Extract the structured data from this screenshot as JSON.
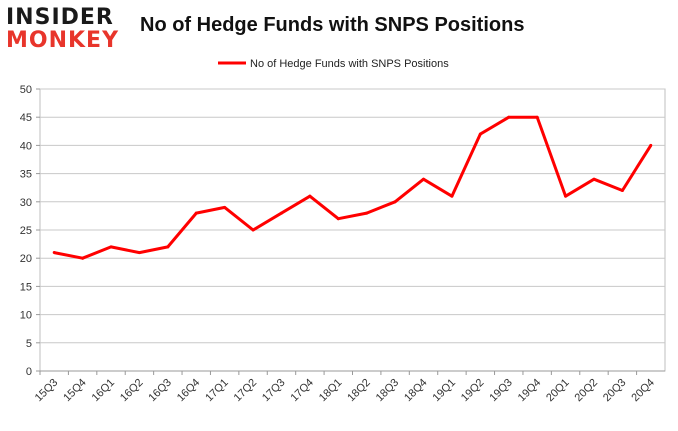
{
  "brand": {
    "logo_top": "INSIDER",
    "logo_bottom": "MONKEY"
  },
  "chart_data": {
    "type": "line",
    "title": "No of Hedge Funds with SNPS Positions",
    "xlabel": "",
    "ylabel": "",
    "categories": [
      "15Q3",
      "15Q4",
      "16Q1",
      "16Q2",
      "16Q3",
      "16Q4",
      "17Q1",
      "17Q2",
      "17Q3",
      "17Q4",
      "18Q1",
      "18Q2",
      "18Q3",
      "18Q4",
      "19Q1",
      "19Q2",
      "19Q3",
      "19Q4",
      "20Q1",
      "20Q2",
      "20Q3",
      "20Q4"
    ],
    "series": [
      {
        "name": "No of Hedge Funds with SNPS Positions",
        "color": "#ff0000",
        "values": [
          21,
          20,
          22,
          21,
          22,
          28,
          29,
          25,
          28,
          31,
          27,
          28,
          30,
          34,
          31,
          42,
          45,
          45,
          31,
          34,
          32,
          40
        ]
      }
    ],
    "ylim": [
      0,
      50
    ],
    "yticks": [
      0,
      5,
      10,
      15,
      20,
      25,
      30,
      35,
      40,
      45,
      50
    ],
    "grid": true,
    "legend": "top-center"
  }
}
